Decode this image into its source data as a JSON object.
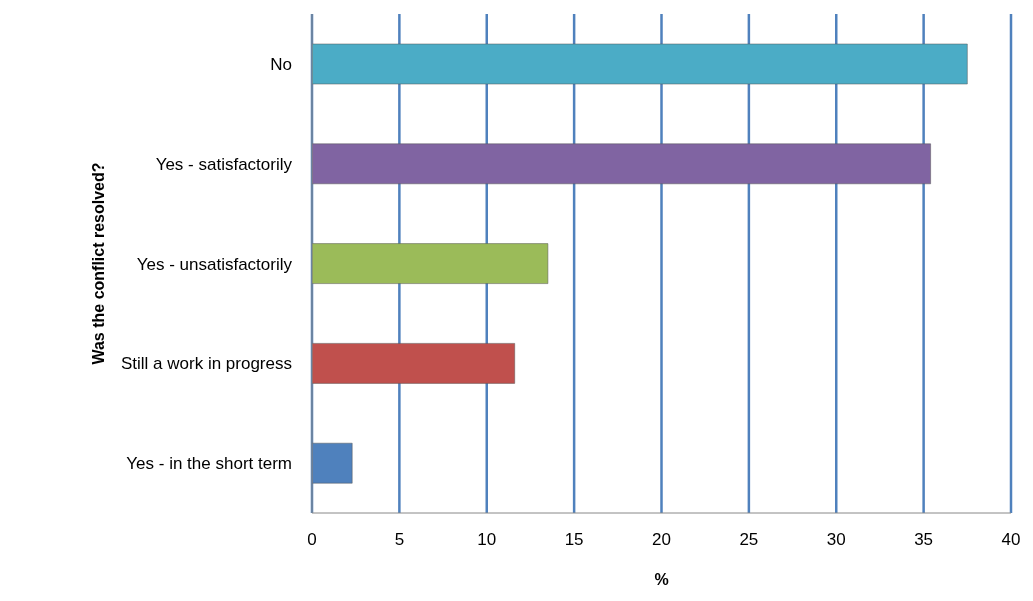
{
  "chart_data": {
    "type": "bar",
    "orientation": "horizontal",
    "xlabel": "%",
    "ylabel": "Was the conflict resolved?",
    "categories": [
      "No",
      "Yes - satisfactorily",
      "Yes - unsatisfactorily",
      "Still a work in progress",
      "Yes - in the short term"
    ],
    "values": [
      37.5,
      35.4,
      13.5,
      11.6,
      2.3
    ],
    "colors": [
      "#4bacc6",
      "#8064a2",
      "#9bbb59",
      "#c0504d",
      "#4f81bd"
    ],
    "xlim": [
      0,
      40
    ],
    "xticks": [
      0,
      5,
      10,
      15,
      20,
      25,
      30,
      35,
      40
    ],
    "grid": "x"
  }
}
